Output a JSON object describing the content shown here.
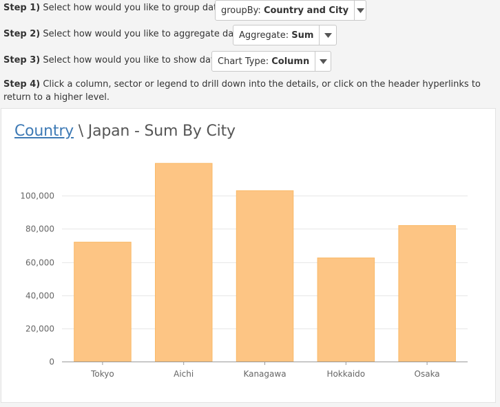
{
  "steps": {
    "step1": {
      "label": "Step 1)",
      "text": "Select how would you like to group data."
    },
    "step2": {
      "label": "Step 2)",
      "text": "Select how would you like to aggregate data."
    },
    "step3": {
      "label": "Step 3)",
      "text": "Select how would you like to show data."
    },
    "step4": {
      "label": "Step 4)",
      "text": "Click a column, sector or legend to drill down into the details, or click on the header hyperlinks to return to a higher level."
    }
  },
  "controls": {
    "group_by": {
      "prefix": "groupBy:",
      "value": "Country and City"
    },
    "aggregate": {
      "prefix": "Aggregate:",
      "value": "Sum"
    },
    "chart_type": {
      "prefix": "Chart Type:",
      "value": "Column"
    }
  },
  "header": {
    "link": "Country",
    "rest": "\\ Japan - Sum By City"
  },
  "colors": {
    "bar_fill": "#fdc584",
    "bar_stroke": "#f9b968",
    "link": "#3e7ab5",
    "grid": "#e6e6e6"
  },
  "chart_data": {
    "type": "bar",
    "title": "Country \\ Japan - Sum By City",
    "categories": [
      "Tokyo",
      "Aichi",
      "Kanagawa",
      "Hokkaido",
      "Osaka"
    ],
    "values": [
      72000,
      119500,
      103000,
      62500,
      82000
    ],
    "ylim": [
      0,
      120000
    ],
    "yticks": [
      0,
      20000,
      40000,
      60000,
      80000,
      100000
    ],
    "ytick_labels": [
      "0",
      "20,000",
      "40,000",
      "60,000",
      "80,000",
      "100,000"
    ],
    "xlabel": "",
    "ylabel": "",
    "grid": true,
    "legend": "none"
  }
}
